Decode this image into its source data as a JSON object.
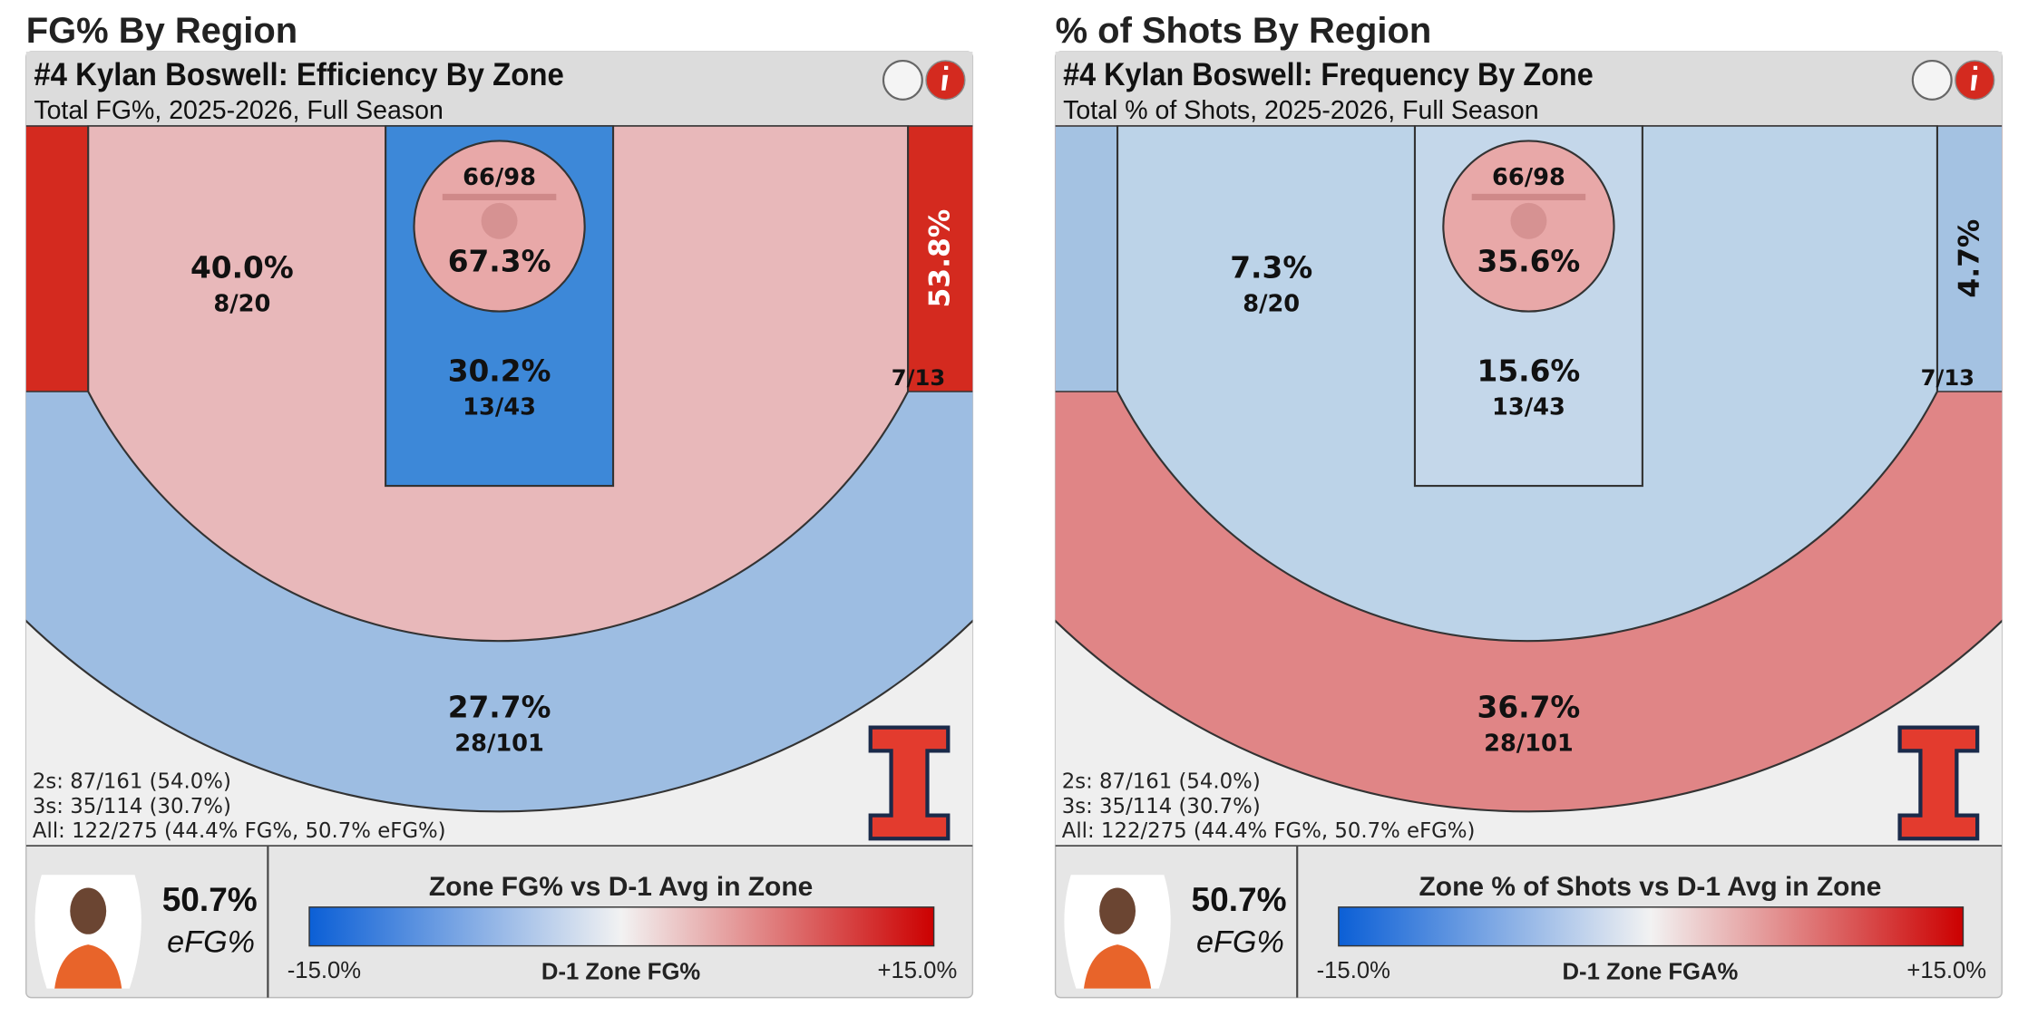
{
  "panels": [
    {
      "section_title": "FG% By Region",
      "title": "#4 Kylan Boswell: Efficiency By Zone",
      "subtitle": "Total FG%, 2025-2026, Full Season",
      "zones": {
        "corner_left": {
          "color": "#d42a1f"
        },
        "corner_right": {
          "value": "53.8%",
          "detail": "7/13",
          "color": "#d42a1f",
          "text_color": "#ffffff"
        },
        "three": {
          "value": "27.7%",
          "detail": "28/101",
          "color": "#9dbde2"
        },
        "midrange": {
          "value": "40.0%",
          "detail": "8/20",
          "color": "#e8b8ba"
        },
        "paint": {
          "value": "30.2%",
          "detail": "13/43",
          "color": "#3d88d8"
        },
        "rim": {
          "value": "67.3%",
          "detail": "66/98",
          "color": "#e8a8a8"
        }
      },
      "stats": [
        "2s: 87/161 (54.0%)",
        "3s: 35/114 (30.7%)",
        "All: 122/275 (44.4% FG%, 50.7% eFG%)"
      ],
      "efg_value": "50.7%",
      "efg_label": "eFG%",
      "legend": {
        "title": "Zone FG% vs D-1 Avg in Zone",
        "min_label": "-15.0%",
        "center_label": "D-1 Zone FG%",
        "max_label": "+15.0%"
      }
    },
    {
      "section_title": "% of Shots By Region",
      "title": "#4 Kylan Boswell: Frequency By Zone",
      "subtitle": "Total % of Shots, 2025-2026, Full Season",
      "zones": {
        "corner_left": {
          "color": "#a4c2e2"
        },
        "corner_right": {
          "value": "4.7%",
          "detail": "7/13",
          "color": "#a4c2e2",
          "text_color": "#111111"
        },
        "three": {
          "value": "36.7%",
          "detail": "28/101",
          "color": "#e08586"
        },
        "midrange": {
          "value": "7.3%",
          "detail": "8/20",
          "color": "#bcd3e8"
        },
        "paint": {
          "value": "15.6%",
          "detail": "13/43",
          "color": "#c4d7ea"
        },
        "rim": {
          "value": "35.6%",
          "detail": "66/98",
          "color": "#e8a8a8"
        }
      },
      "stats": [
        "2s: 87/161 (54.0%)",
        "3s: 35/114 (30.7%)",
        "All: 122/275 (44.4% FG%, 50.7% eFG%)"
      ],
      "efg_value": "50.7%",
      "efg_label": "eFG%",
      "legend": {
        "title": "Zone % of Shots vs D-1 Avg in Zone",
        "min_label": "-15.0%",
        "center_label": "D-1 Zone FGA%",
        "max_label": "+15.0%"
      }
    }
  ]
}
